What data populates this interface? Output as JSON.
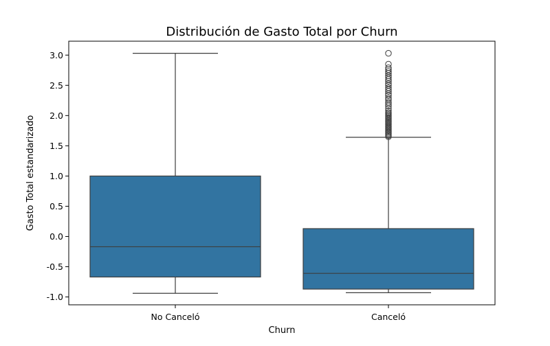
{
  "chart_data": {
    "type": "box",
    "title": "Distribución de Gasto Total por Churn",
    "xlabel": "Churn",
    "ylabel": "Gasto Total estandarizado",
    "ylim": [
      -1.13,
      3.23
    ],
    "yticks": [
      "-1.0",
      "-0.5",
      "0.0",
      "0.5",
      "1.0",
      "1.5",
      "2.0",
      "2.5",
      "3.0"
    ],
    "ytick_values": [
      -1.0,
      -0.5,
      0.0,
      0.5,
      1.0,
      1.5,
      2.0,
      2.5,
      3.0
    ],
    "grid": false,
    "color": "#3274a1",
    "edge_color": "#3d3d3d",
    "categories": [
      "No Canceló",
      "Canceló"
    ],
    "boxes": [
      {
        "category": "No Canceló",
        "whisker_low": -0.94,
        "q1": -0.67,
        "median": -0.17,
        "q3": 1.0,
        "whisker_high": 3.03,
        "outliers": []
      },
      {
        "category": "Canceló",
        "whisker_low": -0.93,
        "q1": -0.87,
        "median": -0.61,
        "q3": 0.13,
        "whisker_high": 1.64,
        "outliers": [
          1.65,
          1.67,
          1.69,
          1.71,
          1.73,
          1.75,
          1.77,
          1.79,
          1.81,
          1.83,
          1.85,
          1.87,
          1.89,
          1.91,
          1.93,
          1.95,
          1.97,
          1.99,
          2.01,
          2.03,
          2.05,
          2.08,
          2.12,
          2.16,
          2.19,
          2.22,
          2.26,
          2.29,
          2.33,
          2.36,
          2.4,
          2.43,
          2.46,
          2.5,
          2.53,
          2.57,
          2.6,
          2.63,
          2.66,
          2.7,
          2.73,
          2.76,
          2.79,
          2.85,
          3.03
        ]
      }
    ]
  }
}
